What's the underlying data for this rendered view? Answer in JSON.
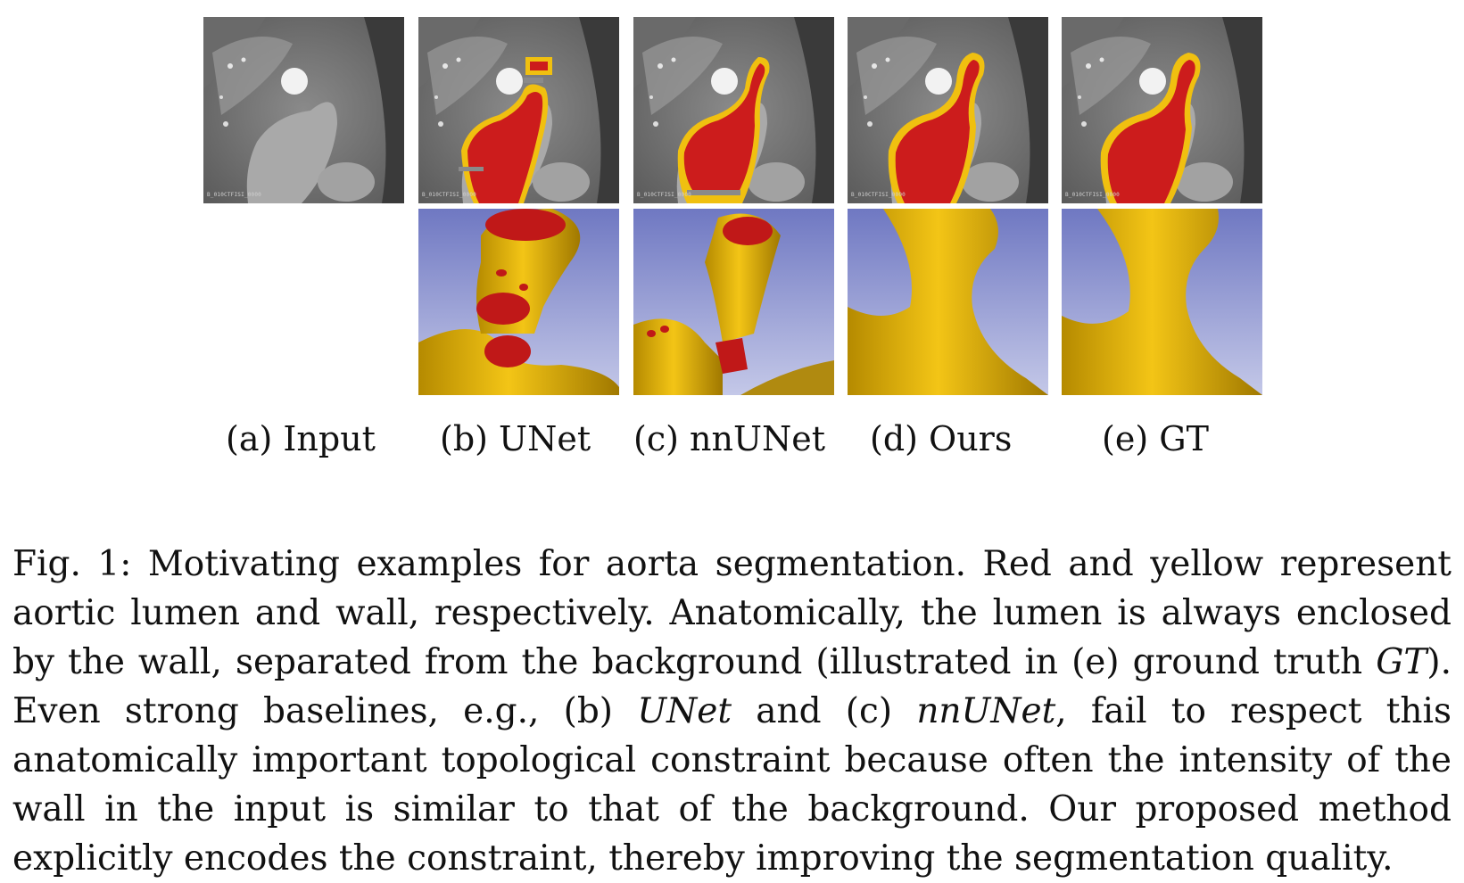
{
  "panels": {
    "a": {
      "label": "(a) Input",
      "watermark": "B_010CTFISI_0000"
    },
    "b": {
      "label": "(b) UNet",
      "watermark": "B_010CTFISI_0000"
    },
    "c": {
      "label": "(c) nnUNet",
      "watermark": "B_010CTFISI_0000"
    },
    "d": {
      "label": "(d) Ours",
      "watermark": "B_010CTFISI_0000"
    },
    "e": {
      "label": "(e) GT",
      "watermark": "B_010CTFISI_0000"
    }
  },
  "legend_colors": {
    "lumen": "#cc1c1c",
    "wall": "#f0c010",
    "render_background": "#7f86c8"
  },
  "caption": {
    "fig_label": "Fig. 1:",
    "t1": "Motivating examples for aorta segmentation. Red and yellow represent aortic lumen and wall, respectively. Anatomically, the lumen is always enclosed by the wall, separated from the background (illustrated in (e) ground truth ",
    "gt": "GT",
    "t2": "). Even strong baselines, e.g., (b) ",
    "unet": "UNet",
    "t3": " and (c) ",
    "nnunet": "nnUNet",
    "t4": ", fail to respect this anatomically important topological constraint because often the intensity of the wall in the input is similar to that of the background. Our proposed method explicitly encodes the constraint, thereby improving the segmentation quality."
  }
}
